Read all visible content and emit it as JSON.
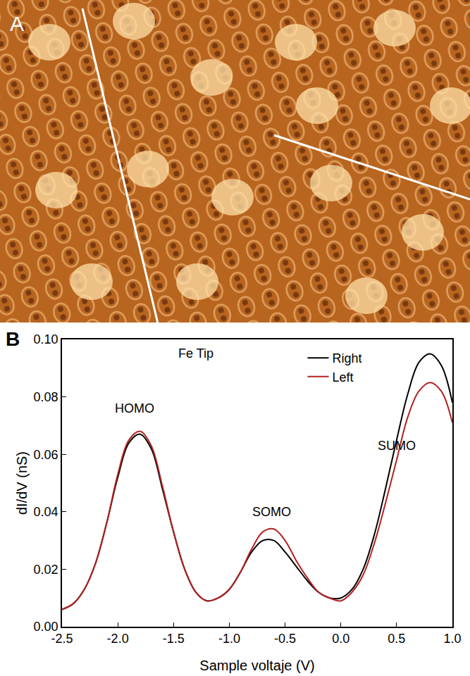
{
  "panel_a": {
    "label": "A"
  },
  "chart_data": {
    "label": "B",
    "type": "line",
    "title": "Fe Tip",
    "x_label": "Sample voltaje (V)",
    "y_label": "dI/dV (nS)",
    "x": [
      -2.5,
      -2.4,
      -2.3,
      -2.2,
      -2.1,
      -2.0,
      -1.9,
      -1.8,
      -1.7,
      -1.6,
      -1.5,
      -1.4,
      -1.3,
      -1.2,
      -1.1,
      -1.0,
      -0.9,
      -0.8,
      -0.7,
      -0.6,
      -0.5,
      -0.4,
      -0.3,
      -0.2,
      -0.1,
      0.0,
      0.1,
      0.2,
      0.3,
      0.4,
      0.5,
      0.6,
      0.7,
      0.8,
      0.9,
      1.0
    ],
    "series": [
      {
        "name": "Right",
        "color": "#000000",
        "values": [
          0.006,
          0.008,
          0.013,
          0.022,
          0.036,
          0.052,
          0.064,
          0.067,
          0.062,
          0.048,
          0.033,
          0.02,
          0.012,
          0.009,
          0.01,
          0.013,
          0.019,
          0.026,
          0.03,
          0.03,
          0.026,
          0.021,
          0.016,
          0.012,
          0.01,
          0.01,
          0.013,
          0.02,
          0.032,
          0.048,
          0.065,
          0.081,
          0.092,
          0.095,
          0.091,
          0.078
        ]
      },
      {
        "name": "Left",
        "color": "#b22222",
        "values": [
          0.006,
          0.008,
          0.013,
          0.022,
          0.036,
          0.053,
          0.065,
          0.068,
          0.063,
          0.049,
          0.033,
          0.02,
          0.012,
          0.009,
          0.01,
          0.013,
          0.019,
          0.027,
          0.033,
          0.034,
          0.03,
          0.023,
          0.017,
          0.012,
          0.01,
          0.009,
          0.012,
          0.018,
          0.029,
          0.043,
          0.058,
          0.073,
          0.082,
          0.085,
          0.082,
          0.071
        ]
      }
    ],
    "annotations": [
      {
        "text": "HOMO",
        "x": -1.85,
        "y": 0.076
      },
      {
        "text": "SOMO",
        "x": -0.62,
        "y": 0.04
      },
      {
        "text": "SUMO",
        "x": 0.5,
        "y": 0.063
      }
    ],
    "xlim": [
      -2.5,
      1.0
    ],
    "xticks": [
      {
        "value": -2.5,
        "label": "-2.5"
      },
      {
        "value": -2.0,
        "label": "-2.0"
      },
      {
        "value": -1.5,
        "label": "-1.5"
      },
      {
        "value": -1.0,
        "label": "-1.0"
      },
      {
        "value": -0.5,
        "label": "-0.5"
      },
      {
        "value": 0.0,
        "label": "0.0"
      },
      {
        "value": 0.5,
        "label": "0.5"
      },
      {
        "value": 1.0,
        "label": "1.0"
      }
    ],
    "ylim": [
      0.0,
      0.1
    ],
    "yticks": [
      {
        "value": 0.0,
        "label": "0.00"
      },
      {
        "value": 0.02,
        "label": "0.02"
      },
      {
        "value": 0.04,
        "label": "0.04"
      },
      {
        "value": 0.06,
        "label": "0.06"
      },
      {
        "value": 0.08,
        "label": "0.08"
      },
      {
        "value": 0.1,
        "label": "0.10"
      }
    ],
    "grid": false,
    "legend": "top right"
  }
}
